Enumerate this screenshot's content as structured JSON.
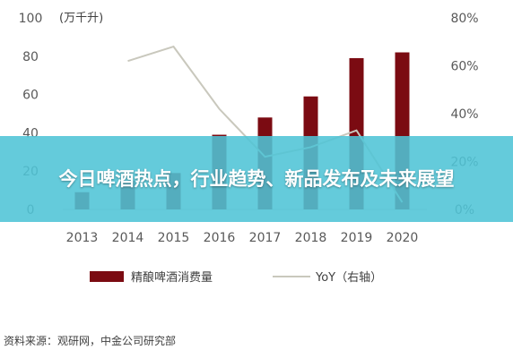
{
  "banner": {
    "title": "今日啤酒热点，行业趋势、新品发布及未来展望"
  },
  "source": "资料来源：观研网，中金公司研究部",
  "colors": {
    "bar": "#7b0b12",
    "line": "#c9c8bd",
    "banner": "#4ec4d6"
  },
  "chart_data": {
    "type": "bar",
    "categories": [
      "2013",
      "2014",
      "2015",
      "2016",
      "2017",
      "2018",
      "2019",
      "2020"
    ],
    "series": [
      {
        "name": "精酿啤酒消费量",
        "axis": "left",
        "type": "bar",
        "values": [
          9,
          15,
          19,
          39,
          48,
          59,
          79,
          82
        ]
      },
      {
        "name": "YoY（右轴）",
        "axis": "right",
        "type": "line",
        "values": [
          null,
          62,
          68,
          42,
          22,
          26,
          33,
          3
        ]
      }
    ],
    "left_axis": {
      "unit": "(万千升)",
      "ylim": [
        0,
        100
      ],
      "ticks": [
        "0",
        "20",
        "40",
        "60",
        "80",
        "100"
      ]
    },
    "right_axis": {
      "ylim": [
        0,
        80
      ],
      "ticks": [
        "0%",
        "20%",
        "40%",
        "60%",
        "80%"
      ]
    },
    "grid": false,
    "legend_position": "bottom"
  }
}
